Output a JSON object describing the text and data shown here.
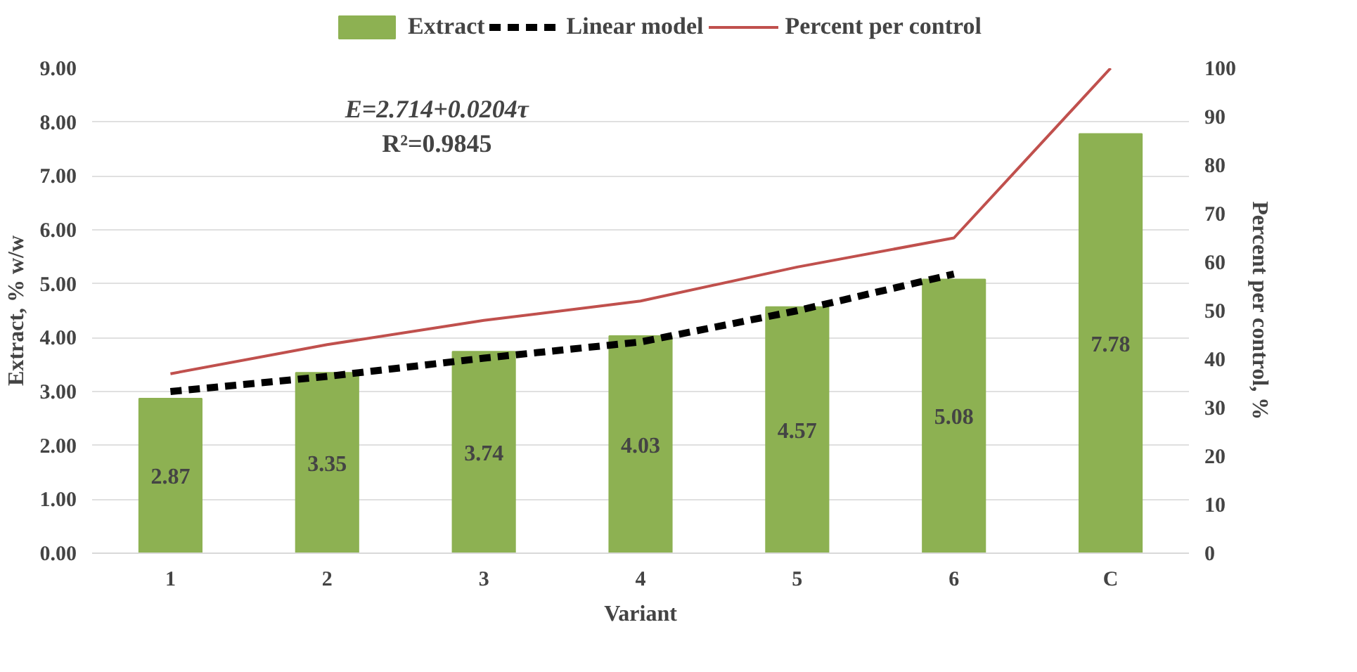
{
  "chart_data": {
    "type": "bar",
    "xlabel": "Variant",
    "ylabel": "Extract, % w/w",
    "y2label": "Percent per control, %",
    "categories": [
      "1",
      "2",
      "3",
      "4",
      "5",
      "6",
      "C"
    ],
    "series": [
      {
        "name": "Extract",
        "color": "#8db152",
        "values": [
          2.87,
          3.35,
          3.74,
          4.03,
          4.57,
          5.08,
          7.78
        ],
        "value_labels": [
          "2.87",
          "3.35",
          "3.74",
          "4.03",
          "4.57",
          "5.08",
          "7.78"
        ]
      },
      {
        "name": "Linear model",
        "type": "line",
        "color": "#000000",
        "line_style": "dashed",
        "values": [
          3.0,
          3.28,
          3.62,
          3.92,
          4.5,
          5.18,
          null
        ]
      },
      {
        "name": "Percent per control",
        "type": "line",
        "color": "#c0504d",
        "axis": "y2",
        "line_style": "solid",
        "values": [
          37,
          43,
          48,
          52,
          59,
          65,
          100
        ]
      }
    ],
    "ylim": [
      0,
      9
    ],
    "yticks": [
      {
        "value": 0,
        "label": "0.00"
      },
      {
        "value": 1,
        "label": "1.00"
      },
      {
        "value": 2,
        "label": "2.00"
      },
      {
        "value": 3,
        "label": "3.00"
      },
      {
        "value": 4,
        "label": "4.00"
      },
      {
        "value": 5,
        "label": "5.00"
      },
      {
        "value": 6,
        "label": "6.00"
      },
      {
        "value": 7,
        "label": "7.00"
      },
      {
        "value": 8,
        "label": "8.00"
      },
      {
        "value": 9,
        "label": "9.00"
      }
    ],
    "y2lim": [
      0,
      100
    ],
    "y2ticks": [
      0,
      10,
      20,
      30,
      40,
      50,
      60,
      70,
      80,
      90,
      100
    ],
    "annotations": [
      "E=2.714+0.0204τ",
      "R²=0.9845"
    ],
    "grid": "y",
    "legend": "top"
  }
}
